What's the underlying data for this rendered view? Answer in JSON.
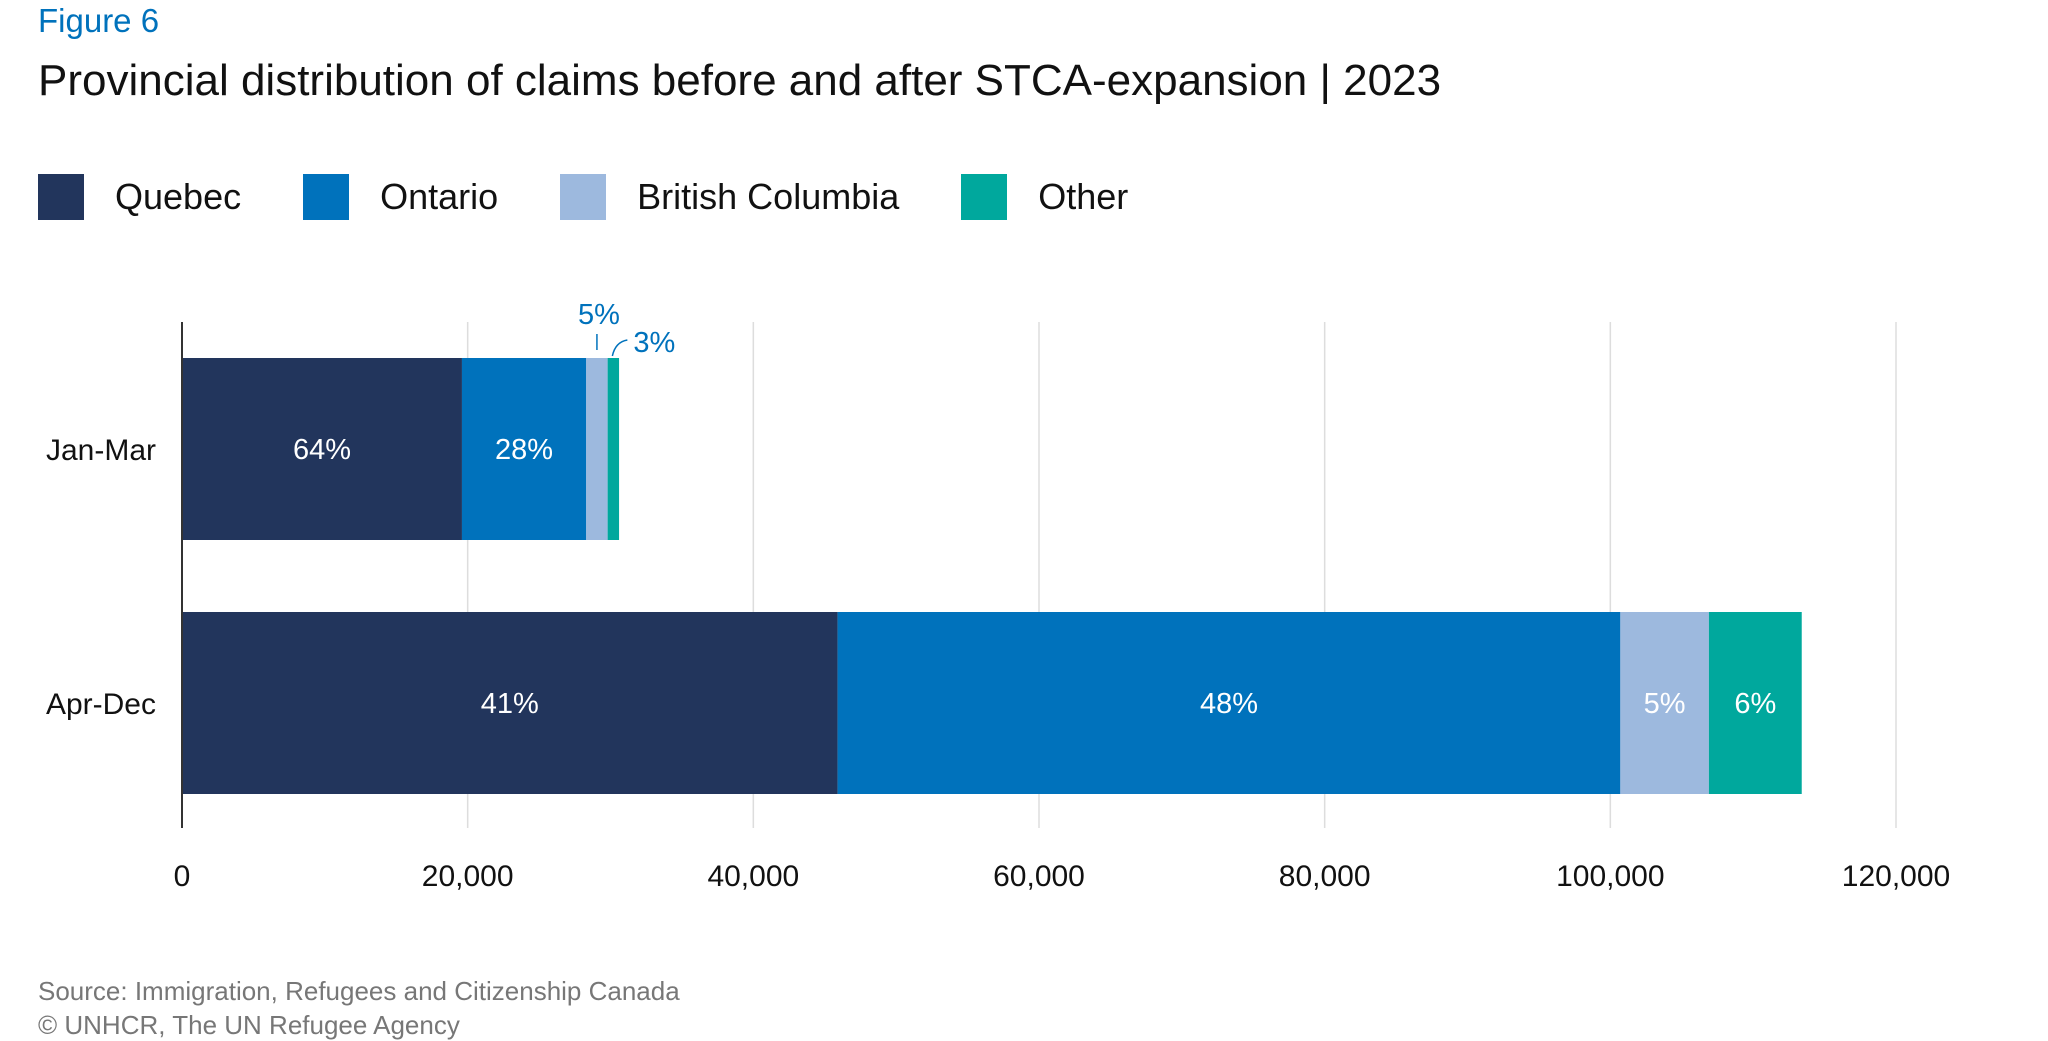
{
  "header": {
    "figure_label": "Figure 6",
    "title": "Provincial distribution of claims before and after STCA-expansion | 2023"
  },
  "colors": {
    "quebec": "#22355c",
    "ontario": "#0072bc",
    "british_columbia": "#9db9de",
    "other": "#00a89d",
    "accent": "#0072bc",
    "grid": "#dddddd"
  },
  "legend": [
    {
      "label": "Quebec",
      "color": "#22355c"
    },
    {
      "label": "Ontario",
      "color": "#0072bc"
    },
    {
      "label": "British Columbia",
      "color": "#9db9de"
    },
    {
      "label": "Other",
      "color": "#00a89d"
    }
  ],
  "chart_data": {
    "type": "bar",
    "orientation": "horizontal",
    "stacked": true,
    "categories": [
      "Jan-Mar",
      "Apr-Dec"
    ],
    "series": [
      {
        "name": "Quebec",
        "values": [
          19600,
          45900
        ],
        "labels": [
          "64%",
          "41%"
        ],
        "color": "#22355c"
      },
      {
        "name": "Ontario",
        "values": [
          8700,
          54800
        ],
        "labels": [
          "28%",
          "48%"
        ],
        "color": "#0072bc"
      },
      {
        "name": "British Columbia",
        "values": [
          1500,
          6200
        ],
        "labels": [
          "5%",
          "5%"
        ],
        "color": "#9db9de"
      },
      {
        "name": "Other",
        "values": [
          800,
          6500
        ],
        "labels": [
          "3%",
          "6%"
        ],
        "color": "#00a89d"
      }
    ],
    "xlim": [
      0,
      120000
    ],
    "xticks": [
      "0",
      "20,000",
      "40,000",
      "60,000",
      "80,000",
      "100,000",
      "120,000"
    ],
    "xtick_values": [
      0,
      20000,
      40000,
      60000,
      80000,
      100000,
      120000
    ],
    "grid": true,
    "legend_position": "top-left"
  },
  "footer": {
    "source": "Source: Immigration, Refugees and Citizenship Canada",
    "copyright": "© UNHCR, The UN Refugee Agency"
  }
}
